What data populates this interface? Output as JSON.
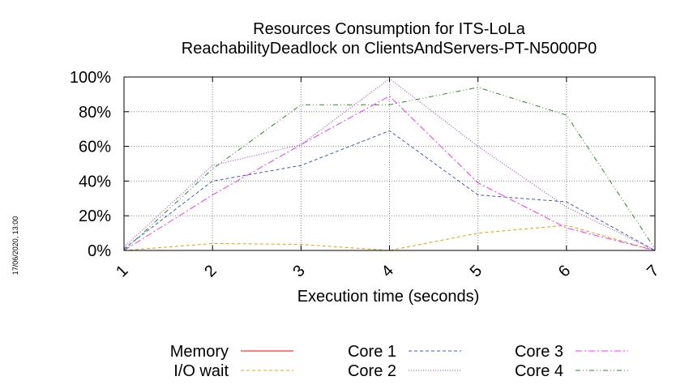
{
  "chart_data": {
    "type": "line",
    "title": "Resources Consumption for ITS-LoLa",
    "subtitle": "ReachabilityDeadlock on ClientsAndServers-PT-N5000P0",
    "xlabel": "Execution time (seconds)",
    "ylabel": "",
    "timestamp": "17/06/2020, 13:00",
    "x": [
      1,
      2,
      3,
      4,
      5,
      6,
      7
    ],
    "xlim": [
      1,
      7
    ],
    "ylim": [
      0,
      100
    ],
    "x_ticks": [
      "1",
      "2",
      "3",
      "4",
      "5",
      "6",
      "7"
    ],
    "y_ticks": [
      {
        "value": 0,
        "label": "0%"
      },
      {
        "value": 20,
        "label": "20%"
      },
      {
        "value": 40,
        "label": "40%"
      },
      {
        "value": 60,
        "label": "60%"
      },
      {
        "value": 80,
        "label": "80%"
      },
      {
        "value": 100,
        "label": "100%"
      }
    ],
    "grid": true,
    "legend_position": "bottom",
    "series": [
      {
        "name": "Memory",
        "color": "#ff0000",
        "dash": "solid",
        "values": [
          0,
          0,
          0,
          0,
          0,
          0,
          0
        ]
      },
      {
        "name": "I/O wait",
        "color": "#e8a000",
        "dash": "dashed",
        "values": [
          0,
          4,
          3.5,
          0,
          10,
          14.5,
          0
        ]
      },
      {
        "name": "Core 1",
        "color": "#3d5ad8",
        "dash": "dashed",
        "values": [
          1,
          40,
          49,
          69,
          32,
          28,
          0
        ]
      },
      {
        "name": "Core 2",
        "color": "#9b33d6",
        "dash": "dotted",
        "values": [
          2,
          49,
          61,
          99,
          60,
          25,
          0
        ]
      },
      {
        "name": "Core 3",
        "color": "#ff33ff",
        "dash": "dashdot",
        "values": [
          0,
          32,
          61,
          89,
          39,
          13,
          0
        ]
      },
      {
        "name": "Core 4",
        "color": "#2a8a2a",
        "dash": "dashdotdot",
        "values": [
          0,
          47,
          84,
          84,
          94,
          78,
          1
        ]
      }
    ]
  }
}
